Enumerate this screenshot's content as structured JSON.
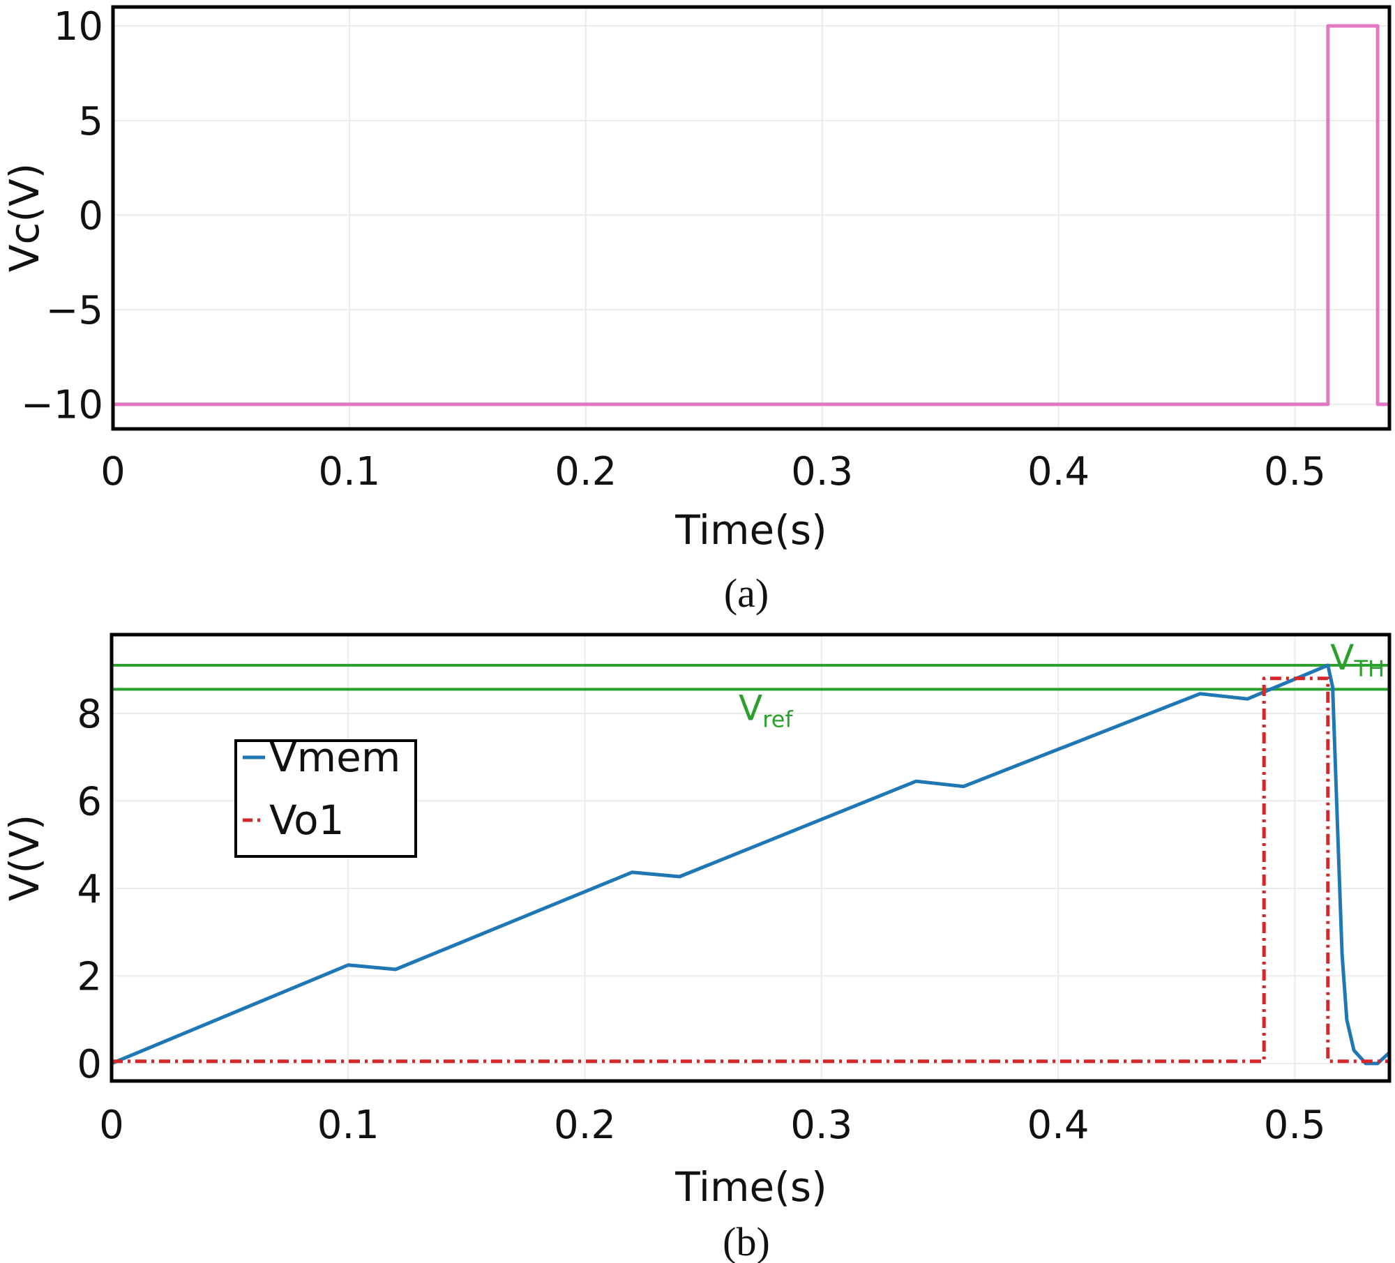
{
  "chart_data": [
    {
      "type": "line",
      "xlabel": "Time(s)",
      "ylabel": "Vc(V)",
      "xlim": [
        0,
        0.54
      ],
      "ylim": [
        -11.3,
        11
      ],
      "xticks": [
        0,
        0.1,
        0.2,
        0.3,
        0.4,
        0.5
      ],
      "xtick_labels": [
        "0",
        "0.1",
        "0.2",
        "0.3",
        "0.4",
        "0.5"
      ],
      "yticks": [
        -10,
        -5,
        0,
        5,
        10
      ],
      "ytick_labels": [
        "−10",
        "−5",
        "0",
        "5",
        "10"
      ],
      "grid": true,
      "caption": "(a)",
      "series": [
        {
          "color": "#e377c2",
          "style": "solid",
          "x": [
            0,
            0,
            0.001,
            0.001,
            0.514,
            0.514,
            0.535,
            0.535,
            0.54
          ],
          "y": [
            10,
            -10,
            -10,
            -10,
            -10,
            10,
            10,
            -10,
            -10
          ]
        }
      ]
    },
    {
      "type": "line",
      "xlabel": "Time(s)",
      "ylabel": "V(V)",
      "xlim": [
        0,
        0.54
      ],
      "ylim": [
        -0.4,
        9.8
      ],
      "xticks": [
        0,
        0.1,
        0.2,
        0.3,
        0.4,
        0.5
      ],
      "xtick_labels": [
        "0",
        "0.1",
        "0.2",
        "0.3",
        "0.4",
        "0.5"
      ],
      "yticks": [
        0,
        2,
        4,
        6,
        8
      ],
      "ytick_labels": [
        "0",
        "2",
        "4",
        "6",
        "8"
      ],
      "grid": true,
      "caption": "(b)",
      "legend": {
        "placement": "upper-left",
        "entries": [
          "Vmem",
          "Vo1"
        ]
      },
      "series": [
        {
          "name": "Vmem",
          "color": "#1f77b4",
          "style": "solid",
          "x": [
            0,
            0.1,
            0.12,
            0.22,
            0.24,
            0.34,
            0.36,
            0.46,
            0.48,
            0.514,
            0.516,
            0.518,
            0.52,
            0.522,
            0.525,
            0.53,
            0.535,
            0.54
          ],
          "y": [
            0,
            2.25,
            2.15,
            4.37,
            4.27,
            6.45,
            6.33,
            8.45,
            8.33,
            9.1,
            8.6,
            5.5,
            2.5,
            1.0,
            0.3,
            0.0,
            0.0,
            0.25
          ]
        },
        {
          "name": "Vo1",
          "color": "#d62728",
          "style": "dashdot",
          "x": [
            0,
            0.487,
            0.487,
            0.514,
            0.514,
            0.54
          ],
          "y": [
            0.05,
            0.05,
            8.8,
            8.8,
            0.05,
            0.05
          ]
        }
      ],
      "hlines": [
        {
          "y": 9.1,
          "color": "#2ca02c"
        },
        {
          "y": 8.55,
          "color": "#2ca02c"
        }
      ],
      "annotations": [
        {
          "main": "V",
          "sub": "TH",
          "x": 0.515,
          "y": 9.0
        },
        {
          "main": "V",
          "sub": "ref",
          "x": 0.265,
          "y": 7.85
        }
      ]
    }
  ]
}
